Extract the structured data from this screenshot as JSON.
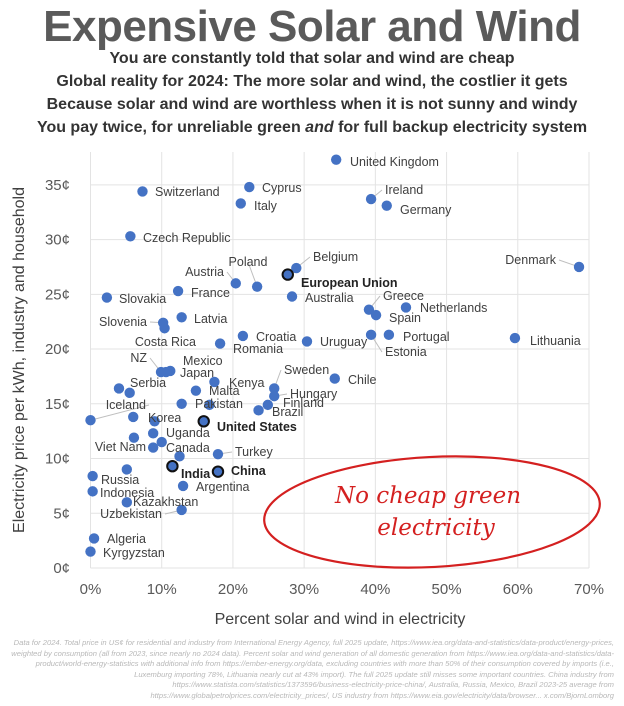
{
  "header": {
    "title": "Expensive Solar and Wind",
    "lines": [
      "You are constantly told that solar and wind are cheap",
      "Global reality for 2024: The more solar and wind, the costlier it gets",
      "Because solar and wind are worthless when it is not sunny and windy"
    ],
    "line4_a": "You pay twice, for unreliable green ",
    "line4_em": "and",
    "line4_b": " for full backup electricity system"
  },
  "annotation": {
    "line1": "No cheap green",
    "line2": "electricity",
    "color": "#d42020"
  },
  "footnote": "Data for 2024. Total price in US¢ for residential and industry from International Energy Agency, full 2025 update, https://www.iea.org/data-and-statistics/data-product/energy-prices, weighted by consumption (all from 2023, since nearly no 2024 data). Percent solar and wind generation of all domestic generation from https://www.iea.org/data-and-statistics/data-product/world-energy-statistics with additional info from https://ember-energy.org/data, excluding countries with more than 50% of their consumption covered by imports (i.e., Luxemburg importing 78%, Lithuania nearly cut at 43% import). The full 2025 update still misses some important countries. China industry from https://www.statista.com/statistics/1373596/business-electricity-price-china/, Australia, Russia, Mexico, Brazil 2023-25 average from https://www.globalpetrolprices.com/electricity_prices/, US industry from https://www.eia.gov/electricity/data/browser... x.com/BjornLomborg",
  "chart_data": {
    "type": "scatter",
    "xlabel": "Percent solar and wind in electricity",
    "ylabel": "Electricity price per kWh, industry and household",
    "xlim": [
      0,
      70
    ],
    "ylim": [
      0,
      38
    ],
    "x_ticks": [
      "0%",
      "10%",
      "20%",
      "30%",
      "40%",
      "50%",
      "60%",
      "70%"
    ],
    "y_ticks": [
      "0¢",
      "5¢",
      "10¢",
      "15¢",
      "20¢",
      "25¢",
      "30¢",
      "35¢"
    ],
    "grid": true,
    "point_color": "#4472C4",
    "highlight_stroke": "#111111",
    "points": [
      {
        "name": "United Kingdom",
        "x": 34.5,
        "y": 37.3
      },
      {
        "name": "Switzerland",
        "x": 7.3,
        "y": 34.4
      },
      {
        "name": "Cyprus",
        "x": 22.3,
        "y": 34.8
      },
      {
        "name": "Italy",
        "x": 21.1,
        "y": 33.3
      },
      {
        "name": "Ireland",
        "x": 39.4,
        "y": 33.7
      },
      {
        "name": "Germany",
        "x": 41.6,
        "y": 33.1
      },
      {
        "name": "Czech Republic",
        "x": 5.6,
        "y": 30.3
      },
      {
        "name": "Belgium",
        "x": 28.9,
        "y": 27.4
      },
      {
        "name": "European Union",
        "x": 27.7,
        "y": 26.8,
        "highlight": true
      },
      {
        "name": "Denmark",
        "x": 68.6,
        "y": 27.5
      },
      {
        "name": "Austria",
        "x": 20.4,
        "y": 26.0
      },
      {
        "name": "Poland",
        "x": 23.4,
        "y": 25.7
      },
      {
        "name": "France",
        "x": 12.3,
        "y": 25.3
      },
      {
        "name": "Slovakia",
        "x": 2.3,
        "y": 24.7
      },
      {
        "name": "Australia",
        "x": 28.3,
        "y": 24.8
      },
      {
        "name": "Greece",
        "x": 39.1,
        "y": 23.6
      },
      {
        "name": "Spain",
        "x": 40.1,
        "y": 23.1
      },
      {
        "name": "Netherlands",
        "x": 44.3,
        "y": 23.8
      },
      {
        "name": "Latvia",
        "x": 12.8,
        "y": 22.9
      },
      {
        "name": "Slovenia",
        "x": 10.2,
        "y": 22.4
      },
      {
        "name": "Costa Rica",
        "x": 10.4,
        "y": 21.9
      },
      {
        "name": "Croatia",
        "x": 21.4,
        "y": 21.2
      },
      {
        "name": "Romania",
        "x": 18.2,
        "y": 20.5
      },
      {
        "name": "Uruguay",
        "x": 30.4,
        "y": 20.7
      },
      {
        "name": "Estonia",
        "x": 39.4,
        "y": 21.3
      },
      {
        "name": "Portugal",
        "x": 41.9,
        "y": 21.3
      },
      {
        "name": "Lithuania",
        "x": 59.6,
        "y": 21.0
      },
      {
        "name": "Chile",
        "x": 34.3,
        "y": 17.3
      },
      {
        "name": "NZ",
        "x": 9.9,
        "y": 17.9
      },
      {
        "name": "Japan",
        "x": 10.6,
        "y": 17.9
      },
      {
        "name": "Mexico",
        "x": 11.2,
        "y": 18.0
      },
      {
        "name": "Kenya",
        "x": 17.4,
        "y": 17.0
      },
      {
        "name": "Serbia",
        "x": 4.0,
        "y": 16.4
      },
      {
        "name": "",
        "x": 5.5,
        "y": 16.0
      },
      {
        "name": "Malta",
        "x": 14.8,
        "y": 16.2
      },
      {
        "name": "Sweden",
        "x": 25.8,
        "y": 16.4
      },
      {
        "name": "Hungary",
        "x": 25.8,
        "y": 15.7
      },
      {
        "name": "Finland",
        "x": 24.9,
        "y": 14.9
      },
      {
        "name": "Brazil",
        "x": 23.6,
        "y": 14.4
      },
      {
        "name": "Pakistan",
        "x": 12.8,
        "y": 15.0
      },
      {
        "name": "",
        "x": 16.7,
        "y": 14.9
      },
      {
        "name": "Iceland",
        "x": 0.0,
        "y": 13.5
      },
      {
        "name": "",
        "x": 6.0,
        "y": 13.8
      },
      {
        "name": "Korea",
        "x": 9.0,
        "y": 13.4
      },
      {
        "name": "United States",
        "x": 15.9,
        "y": 13.4,
        "highlight": true
      },
      {
        "name": "",
        "x": 6.1,
        "y": 11.9
      },
      {
        "name": "Uganda",
        "x": 8.8,
        "y": 12.3
      },
      {
        "name": "",
        "x": 10.0,
        "y": 11.5
      },
      {
        "name": "Viet Nam",
        "x": 8.8,
        "y": 11.0
      },
      {
        "name": "Canada",
        "x": 12.5,
        "y": 10.2
      },
      {
        "name": "Turkey",
        "x": 17.9,
        "y": 10.4
      },
      {
        "name": "India",
        "x": 11.5,
        "y": 9.3,
        "highlight": true
      },
      {
        "name": "China",
        "x": 17.9,
        "y": 8.8,
        "highlight": true
      },
      {
        "name": "",
        "x": 5.1,
        "y": 9.0
      },
      {
        "name": "Russia",
        "x": 0.3,
        "y": 8.4
      },
      {
        "name": "Indonesia",
        "x": 0.3,
        "y": 7.0
      },
      {
        "name": "Argentina",
        "x": 13.0,
        "y": 7.5
      },
      {
        "name": "Kazakhstan",
        "x": 5.1,
        "y": 6.0
      },
      {
        "name": "Uzbekistan",
        "x": 12.8,
        "y": 5.3
      },
      {
        "name": "Algeria",
        "x": 0.5,
        "y": 2.7
      },
      {
        "name": "Kyrgyzstan",
        "x": 0.0,
        "y": 1.5
      }
    ]
  }
}
